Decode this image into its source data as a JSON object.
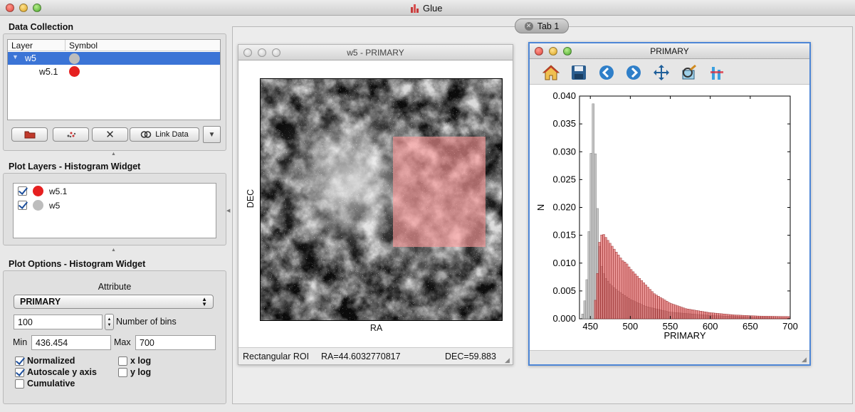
{
  "app": {
    "title": "Glue"
  },
  "data_collection": {
    "heading": "Data Collection",
    "col_layer": "Layer",
    "col_symbol": "Symbol",
    "rows": [
      {
        "label": "w5",
        "color": "#bdbdbd",
        "selected": true
      },
      {
        "label": "w5.1",
        "color": "#e62020",
        "selected": false
      }
    ],
    "link_data_label": "Link Data"
  },
  "plot_layers": {
    "heading": "Plot Layers - Histogram Widget",
    "items": [
      {
        "label": "w5.1",
        "color": "#e62020",
        "checked": true
      },
      {
        "label": "w5",
        "color": "#bdbdbd",
        "checked": true
      }
    ]
  },
  "plot_options": {
    "heading": "Plot Options - Histogram Widget",
    "attribute_label": "Attribute",
    "attribute_value": "PRIMARY",
    "bins_value": "100",
    "bins_label": "Number of bins",
    "min_label": "Min",
    "min_value": "436.454",
    "max_label": "Max",
    "max_value": "700",
    "normalized": "Normalized",
    "autoscale": "Autoscale y axis",
    "cumulative": "Cumulative",
    "xlog": "x log",
    "ylog": "y log"
  },
  "tab": {
    "label": "Tab 1"
  },
  "image_window": {
    "title": "w5 - PRIMARY",
    "xlabel": "RA",
    "ylabel": "DEC",
    "status_roi": "Rectangular ROI",
    "status_ra": "RA=44.6032770817",
    "status_dec": "DEC=59.883"
  },
  "hist_window": {
    "title": "PRIMARY"
  },
  "chart_data": {
    "type": "bar",
    "xlabel": "PRIMARY",
    "ylabel": "N",
    "xlim": [
      436.454,
      700
    ],
    "ylim": [
      0,
      0.04
    ],
    "x_ticks": [
      450,
      500,
      550,
      600,
      650,
      700
    ],
    "y_ticks": [
      "0.000",
      "0.005",
      "0.010",
      "0.015",
      "0.020",
      "0.025",
      "0.030",
      "0.035",
      "0.040"
    ],
    "series": [
      {
        "name": "w5",
        "color": "#bdbdbd",
        "bins": [
          [
            440,
            0.0005
          ],
          [
            445,
            0.005
          ],
          [
            448,
            0.014
          ],
          [
            451,
            0.03
          ],
          [
            454,
            0.04
          ],
          [
            457,
            0.026
          ],
          [
            460,
            0.016
          ],
          [
            463,
            0.01
          ],
          [
            468,
            0.0075
          ],
          [
            475,
            0.0062
          ],
          [
            485,
            0.005
          ],
          [
            500,
            0.0035
          ],
          [
            520,
            0.0022
          ],
          [
            550,
            0.0012
          ],
          [
            600,
            0.0006
          ],
          [
            650,
            0.0003
          ],
          [
            699,
            0.0001
          ]
        ]
      },
      {
        "name": "w5.1",
        "color": "#d84a4a",
        "bins": [
          [
            455,
            0.0015
          ],
          [
            458,
            0.006
          ],
          [
            461,
            0.0135
          ],
          [
            465,
            0.0155
          ],
          [
            470,
            0.0145
          ],
          [
            475,
            0.0135
          ],
          [
            480,
            0.0125
          ],
          [
            485,
            0.0115
          ],
          [
            490,
            0.0105
          ],
          [
            495,
            0.01
          ],
          [
            500,
            0.009
          ],
          [
            510,
            0.0075
          ],
          [
            520,
            0.006
          ],
          [
            530,
            0.0045
          ],
          [
            550,
            0.0028
          ],
          [
            570,
            0.0018
          ],
          [
            600,
            0.0011
          ],
          [
            630,
            0.0007
          ],
          [
            660,
            0.0005
          ],
          [
            699,
            0.0004
          ]
        ]
      }
    ]
  }
}
